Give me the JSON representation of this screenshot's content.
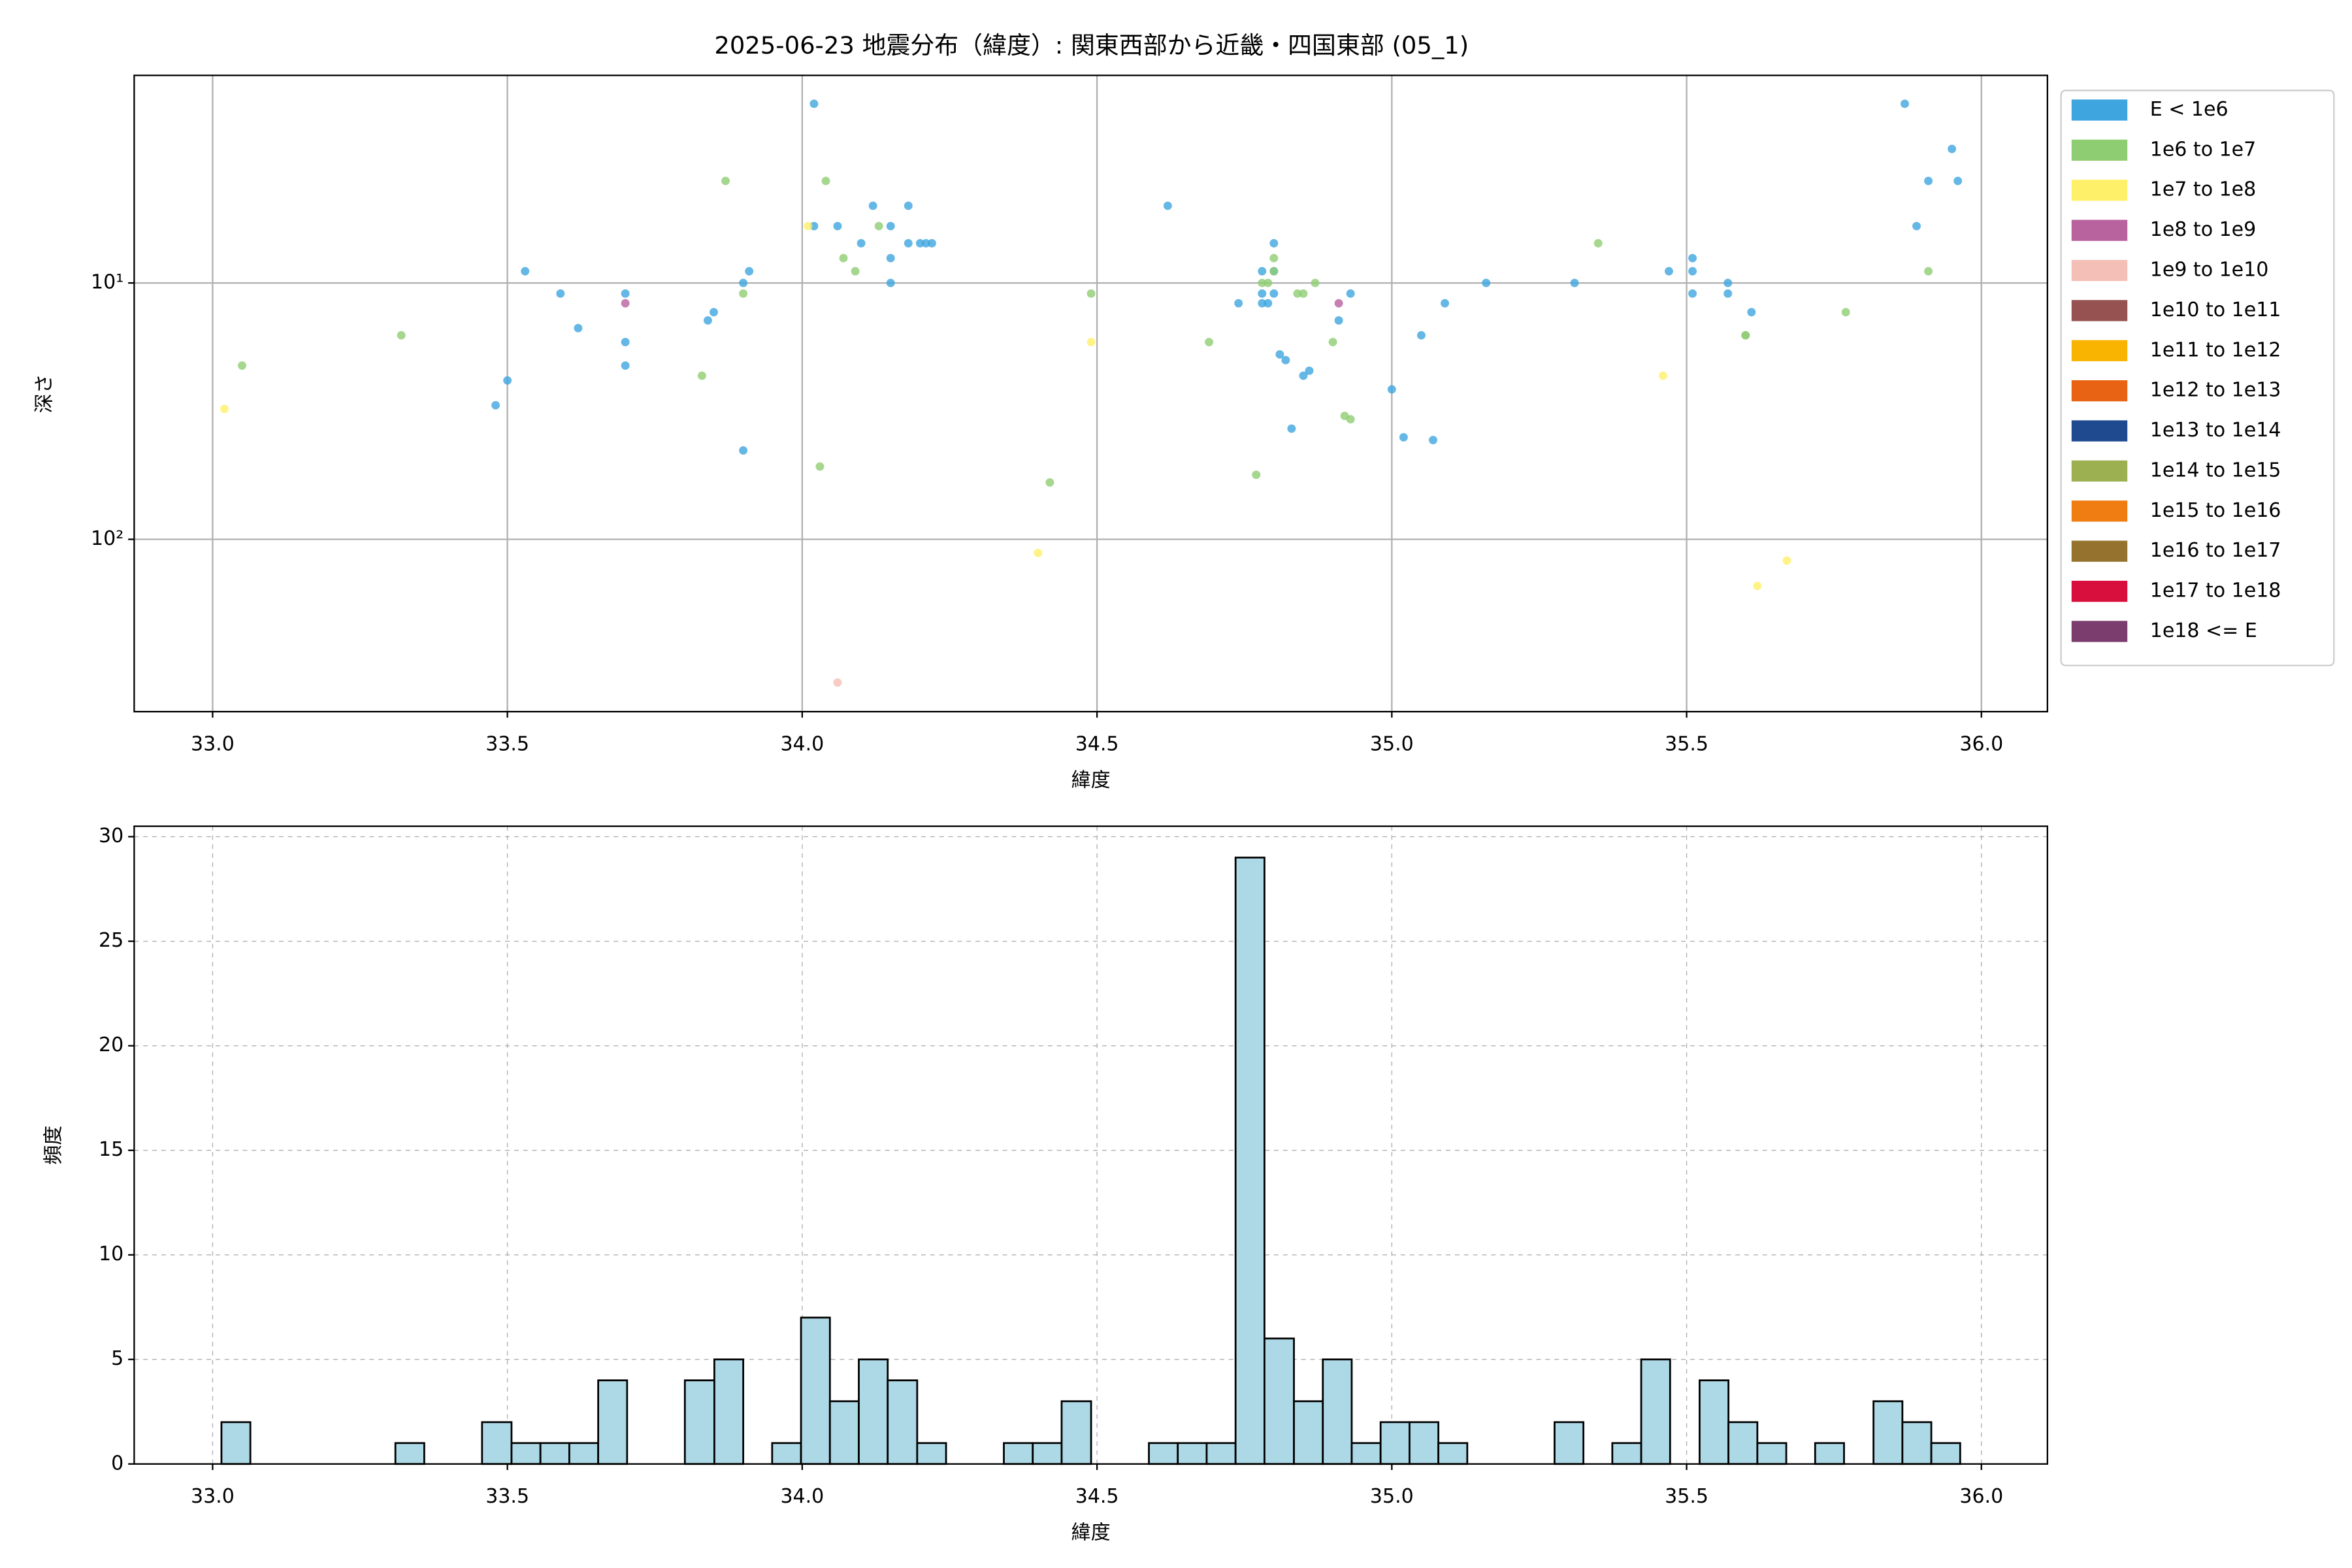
{
  "chart_data": [
    {
      "type": "scatter",
      "title": "2025-06-23 地震分布（緯度）: 関東西部から近畿・四国東部 (05_1)",
      "x_label": "緯度",
      "y_label": "深さ",
      "xlim": [
        32.867,
        36.112
      ],
      "ylim": [
        1.55,
        470
      ],
      "y_inverted": true,
      "yscale": "log",
      "xticks": [
        {
          "value": 33,
          "label": "33.0"
        },
        {
          "value": 33.5,
          "label": "33.5"
        },
        {
          "value": 34,
          "label": "34.0"
        },
        {
          "value": 34.5,
          "label": "34.5"
        },
        {
          "value": 35,
          "label": "35.0"
        },
        {
          "value": 35.5,
          "label": "35.5"
        },
        {
          "value": 36,
          "label": "36.0"
        }
      ],
      "yticks": [
        {
          "value": 10,
          "label": "10¹"
        },
        {
          "value": 100,
          "label": "10²"
        }
      ],
      "grid": true,
      "grid_style": "solid",
      "legend": "outside right",
      "series": [
        {
          "name": "E < 1e6",
          "color": "#3ea5de",
          "x": [
            34.02,
            35.87,
            35.95,
            35.91,
            35.96,
            34.12,
            34.18,
            34.62,
            34.02,
            34.06,
            34.15,
            35.89,
            34.8,
            34.1,
            34.18,
            34.2,
            34.21,
            34.22,
            35.51,
            34.15,
            33.53,
            33.91,
            34.78,
            34.8,
            35.47,
            35.51,
            33.9,
            34.15,
            35.16,
            35.31,
            35.57,
            33.59,
            33.7,
            34.78,
            34.8,
            34.93,
            35.51,
            35.57,
            34.74,
            34.78,
            34.79,
            35.09,
            35.61,
            33.85,
            33.84,
            34.91,
            33.62,
            35.05,
            33.7,
            33.7,
            34.81,
            34.82,
            34.86,
            34.85,
            33.5,
            33.48,
            35.0,
            35.02,
            35.07,
            34.83,
            33.9
          ],
          "values": [
            2.0,
            2.0,
            3.0,
            4.0,
            4.0,
            5.0,
            5.0,
            5.0,
            6.0,
            6.0,
            6.0,
            6.0,
            7.0,
            7.0,
            7.0,
            7.0,
            7.0,
            7.0,
            8.0,
            8.0,
            9.0,
            9.0,
            9.0,
            9.0,
            9.0,
            9.0,
            10,
            10,
            10,
            10,
            10,
            11,
            11,
            11,
            11,
            11,
            11,
            11,
            12,
            12,
            12,
            12,
            13,
            13,
            14,
            14,
            15,
            16,
            17,
            21,
            19,
            20,
            22,
            23,
            24,
            30,
            26,
            40,
            41,
            37,
            45
          ]
        },
        {
          "name": "1e6 to 1e7",
          "color": "#8fcd73",
          "x": [
            33.87,
            34.04,
            34.13,
            35.35,
            34.07,
            34.8,
            34.09,
            34.8,
            35.91,
            34.78,
            34.87,
            34.79,
            34.49,
            33.9,
            34.84,
            34.85,
            35.77,
            33.32,
            35.6,
            35.6,
            34.69,
            34.9,
            33.05,
            33.83,
            34.92,
            34.93,
            34.03,
            34.77,
            34.42
          ],
          "values": [
            4.0,
            4.0,
            6.0,
            7.0,
            8.0,
            8.0,
            9.0,
            9.0,
            9.0,
            10,
            10,
            10,
            11,
            11,
            11,
            11,
            13,
            16,
            16,
            16,
            17,
            17,
            21,
            23,
            33,
            34,
            52,
            56,
            60
          ]
        },
        {
          "name": "1e7 to 1e8",
          "color": "#fff06a",
          "x": [
            34.01,
            34.49,
            33.02,
            35.46,
            34.4,
            35.67,
            35.62
          ],
          "values": [
            6.0,
            17,
            31,
            23,
            113,
            121,
            152
          ]
        },
        {
          "name": "1e8 to 1e9",
          "color": "#b8629e",
          "x": [
            33.7,
            34.91
          ],
          "values": [
            12,
            12
          ]
        },
        {
          "name": "1e9 to 1e10",
          "color": "#f4bfb7",
          "x": [
            34.06
          ],
          "values": [
            362
          ]
        },
        {
          "name": "1e10 to 1e11",
          "color": "#955250",
          "x": [],
          "values": []
        },
        {
          "name": "1e11 to 1e12",
          "color": "#f8b400",
          "x": [],
          "values": []
        },
        {
          "name": "1e12 to 1e13",
          "color": "#e86313",
          "x": [],
          "values": []
        },
        {
          "name": "1e13 to 1e14",
          "color": "#1f4a90",
          "x": [],
          "values": []
        },
        {
          "name": "1e14 to 1e15",
          "color": "#9caf51",
          "x": [],
          "values": []
        },
        {
          "name": "1e15 to 1e16",
          "color": "#f07d12",
          "x": [],
          "values": []
        },
        {
          "name": "1e16 to 1e17",
          "color": "#96722f",
          "x": [],
          "values": []
        },
        {
          "name": "1e17 to 1e18",
          "color": "#d80e3c",
          "x": [],
          "values": []
        },
        {
          "name": "1e18 <= E",
          "color": "#7a3d6d",
          "x": [],
          "values": []
        }
      ]
    },
    {
      "type": "histogram",
      "x_label": "緯度",
      "y_label": "頻度",
      "color": "#add8e6",
      "edge_color": "#000000",
      "xlim": [
        32.867,
        36.112
      ],
      "ylim": [
        0,
        30.5
      ],
      "xticks": [
        {
          "value": 33,
          "label": "33.0"
        },
        {
          "value": 33.5,
          "label": "33.5"
        },
        {
          "value": 34,
          "label": "34.0"
        },
        {
          "value": 34.5,
          "label": "34.5"
        },
        {
          "value": 35,
          "label": "35.0"
        },
        {
          "value": 35.5,
          "label": "35.5"
        },
        {
          "value": 36,
          "label": "36.0"
        }
      ],
      "yticks": [
        0,
        5,
        10,
        15,
        20,
        25,
        30
      ],
      "grid": true,
      "grid_style": "dashed",
      "bins": [
        33.015,
        33.064,
        33.113,
        33.162,
        33.212,
        33.261,
        33.31,
        33.359,
        33.408,
        33.457,
        33.507,
        33.556,
        33.605,
        33.654,
        33.703,
        33.752,
        33.801,
        33.851,
        33.9,
        33.949,
        33.998,
        34.047,
        34.096,
        34.145,
        34.195,
        34.244,
        34.293,
        34.342,
        34.391,
        34.44,
        34.49,
        34.539,
        34.588,
        34.637,
        34.686,
        34.735,
        34.784,
        34.834,
        34.883,
        34.932,
        34.981,
        35.03,
        35.079,
        35.128,
        35.178,
        35.227,
        35.276,
        35.325,
        35.374,
        35.423,
        35.472,
        35.522,
        35.571,
        35.62,
        35.669,
        35.718,
        35.767,
        35.817,
        35.866,
        35.915,
        35.964
      ],
      "values": [
        2,
        0,
        0,
        0,
        0,
        0,
        1,
        0,
        0,
        2,
        1,
        1,
        1,
        4,
        0,
        0,
        4,
        5,
        0,
        1,
        7,
        3,
        5,
        4,
        1,
        0,
        0,
        1,
        1,
        3,
        0,
        0,
        1,
        1,
        1,
        29,
        6,
        3,
        5,
        1,
        2,
        2,
        1,
        0,
        0,
        0,
        2,
        0,
        1,
        5,
        0,
        4,
        2,
        1,
        0,
        1,
        0,
        3,
        2,
        1
      ]
    }
  ]
}
